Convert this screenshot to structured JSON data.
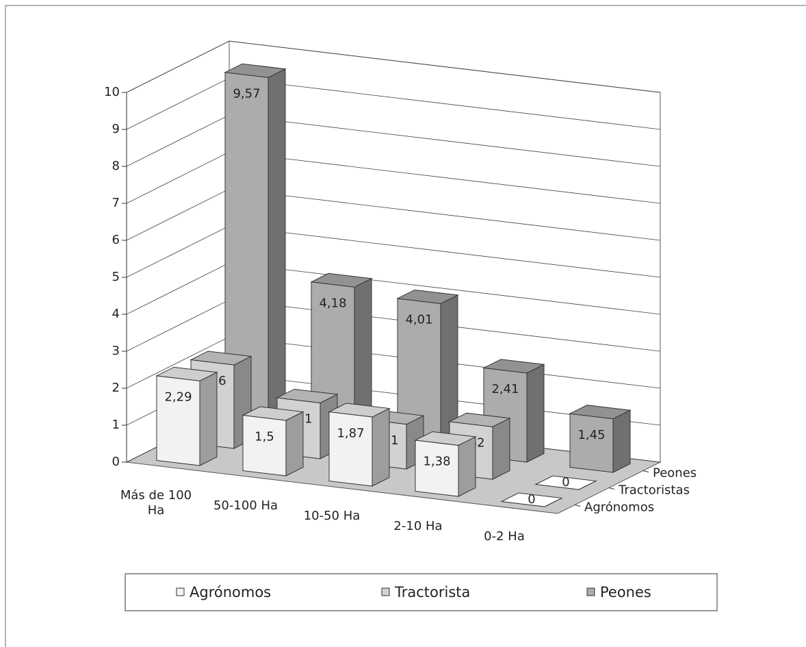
{
  "chart_data": {
    "type": "bar3d",
    "categories": [
      "Más de 100 Ha",
      "50-100 Ha",
      "10-50 Ha",
      "2-10 Ha",
      "0-2 Ha"
    ],
    "depth_labels": [
      "Agrónomos",
      "Tractoristas",
      "Peones"
    ],
    "series": [
      {
        "name": "Agrónomos",
        "color": "#f2f2f2",
        "values": [
          2.29,
          1.5,
          1.87,
          1.38,
          0
        ],
        "value_labels": [
          "2,29",
          "1,5",
          "1,87",
          "1,38",
          "0"
        ]
      },
      {
        "name": "Tractorista",
        "color": "#d2d2d2",
        "values": [
          2.26,
          1.51,
          1.21,
          1.42,
          0
        ],
        "value_labels": [
          "2,26",
          "1,51",
          "1,21",
          "1,42",
          "0"
        ]
      },
      {
        "name": "Peones",
        "color": "#acacac",
        "values": [
          9.57,
          4.18,
          4.01,
          2.41,
          1.45
        ],
        "value_labels": [
          "9,57",
          "4,18",
          "4,01",
          "2,41",
          "1,45"
        ]
      }
    ],
    "ylim": [
      0,
      10
    ],
    "yticks": [
      0,
      1,
      2,
      3,
      4,
      5,
      6,
      7,
      8,
      9,
      10
    ],
    "grid": true,
    "legend": "bottom"
  }
}
